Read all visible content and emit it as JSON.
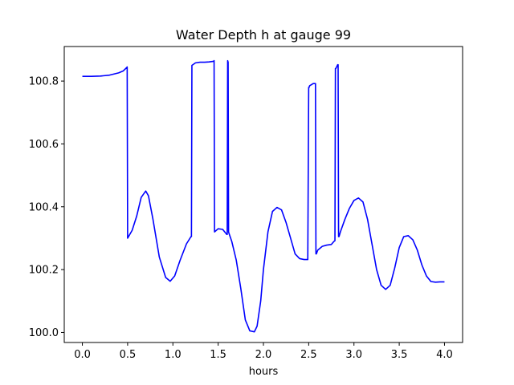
{
  "chart_data": {
    "type": "line",
    "title": "Water Depth h at gauge 99",
    "xlabel": "hours",
    "ylabel": "",
    "xlim": [
      -0.2,
      4.2
    ],
    "ylim": [
      99.968,
      100.91
    ],
    "xticks": [
      0.0,
      0.5,
      1.0,
      1.5,
      2.0,
      2.5,
      3.0,
      3.5,
      4.0
    ],
    "xtick_labels": [
      "0.0",
      "0.5",
      "1.0",
      "1.5",
      "2.0",
      "2.5",
      "3.0",
      "3.5",
      "4.0"
    ],
    "yticks": [
      100.0,
      100.2,
      100.4,
      100.6,
      100.8
    ],
    "ytick_labels": [
      "100.0",
      "100.2",
      "100.4",
      "100.6",
      "100.8"
    ],
    "grid": false,
    "legend": "none",
    "series": [
      {
        "color": "#0000ff",
        "x": [
          0.0,
          0.1,
          0.2,
          0.3,
          0.4,
          0.45,
          0.49,
          0.495,
          0.5,
          0.55,
          0.6,
          0.65,
          0.7,
          0.73,
          0.78,
          0.85,
          0.92,
          0.97,
          1.02,
          1.08,
          1.15,
          1.2,
          1.205,
          1.21,
          1.25,
          1.3,
          1.35,
          1.4,
          1.45,
          1.455,
          1.46,
          1.5,
          1.55,
          1.595,
          1.6,
          1.605,
          1.61,
          1.615,
          1.62,
          1.65,
          1.7,
          1.75,
          1.8,
          1.85,
          1.9,
          1.93,
          1.97,
          2.0,
          2.05,
          2.1,
          2.15,
          2.2,
          2.25,
          2.3,
          2.35,
          2.4,
          2.45,
          2.49,
          2.5,
          2.505,
          2.51,
          2.55,
          2.575,
          2.58,
          2.585,
          2.6,
          2.65,
          2.7,
          2.75,
          2.78,
          2.79,
          2.795,
          2.8,
          2.82,
          2.825,
          2.83,
          2.835,
          2.85,
          2.9,
          2.95,
          3.0,
          3.05,
          3.1,
          3.15,
          3.2,
          3.25,
          3.3,
          3.35,
          3.4,
          3.45,
          3.5,
          3.55,
          3.6,
          3.65,
          3.7,
          3.75,
          3.8,
          3.85,
          3.9,
          3.95,
          4.0
        ],
        "y": [
          100.815,
          100.815,
          100.816,
          100.819,
          100.826,
          100.832,
          100.843,
          100.845,
          100.3,
          100.325,
          100.37,
          100.43,
          100.45,
          100.435,
          100.36,
          100.24,
          100.175,
          100.163,
          100.18,
          100.23,
          100.282,
          100.305,
          100.305,
          100.85,
          100.858,
          100.86,
          100.86,
          100.861,
          100.863,
          100.865,
          100.32,
          100.33,
          100.328,
          100.312,
          100.312,
          100.865,
          100.86,
          100.32,
          100.315,
          100.29,
          100.23,
          100.14,
          100.04,
          100.005,
          100.002,
          100.02,
          100.1,
          100.2,
          100.32,
          100.385,
          100.398,
          100.39,
          100.35,
          100.3,
          100.25,
          100.235,
          100.232,
          100.232,
          100.78,
          100.78,
          100.785,
          100.792,
          100.792,
          100.25,
          100.25,
          100.262,
          100.274,
          100.278,
          100.28,
          100.29,
          100.292,
          100.84,
          100.84,
          100.852,
          100.852,
          100.305,
          100.305,
          100.32,
          100.36,
          100.395,
          100.42,
          100.428,
          100.415,
          100.36,
          100.28,
          100.2,
          100.15,
          100.137,
          100.15,
          100.205,
          100.27,
          100.305,
          100.308,
          100.295,
          100.262,
          100.215,
          100.18,
          100.162,
          100.16,
          100.161,
          100.161
        ]
      }
    ]
  }
}
